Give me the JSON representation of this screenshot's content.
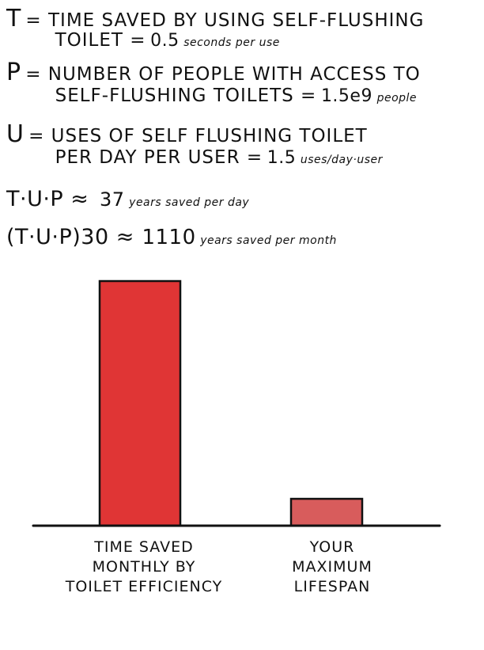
{
  "equations": {
    "t": {
      "symbol": "T",
      "line1": "= TIME SAVED BY USING SELF-FLUSHING",
      "line2": "TOILET =",
      "value": "0.5",
      "unit": "seconds per use"
    },
    "p": {
      "symbol": "P",
      "line1": "= NUMBER OF PEOPLE WITH ACCESS TO",
      "line2": "SELF-FLUSHING TOILETS =",
      "value": "1.5e9",
      "unit": "people"
    },
    "u": {
      "symbol": "U",
      "line1": "= USES OF SELF FLUSHING TOILET",
      "line2": "PER DAY PER USER =",
      "value": "1.5",
      "unit": "uses/day·user"
    },
    "tup": {
      "expr": "T·U·P ≈",
      "value": "37",
      "unit": "years saved per day"
    },
    "tup30": {
      "expr": "(T·U·P)30 ≈",
      "value": "1110",
      "unit": "years saved per month"
    }
  },
  "chart_data": {
    "type": "bar",
    "title": "",
    "xlabel": "",
    "ylabel": "",
    "grid": false,
    "categories": [
      "TIME SAVED MONTHLY BY TOILET EFFICIENCY",
      "YOUR MAXIMUM LIFESPAN"
    ],
    "label_lines": [
      [
        "TIME SAVED",
        "MONTHLY BY",
        "TOILET EFFICIENCY"
      ],
      [
        "YOUR",
        "MAXIMUM",
        "LIFESPAN"
      ]
    ],
    "values": [
      1110,
      122
    ],
    "ylim": [
      0,
      1110
    ],
    "colors": [
      "#e03535",
      "#d85c5c"
    ]
  }
}
